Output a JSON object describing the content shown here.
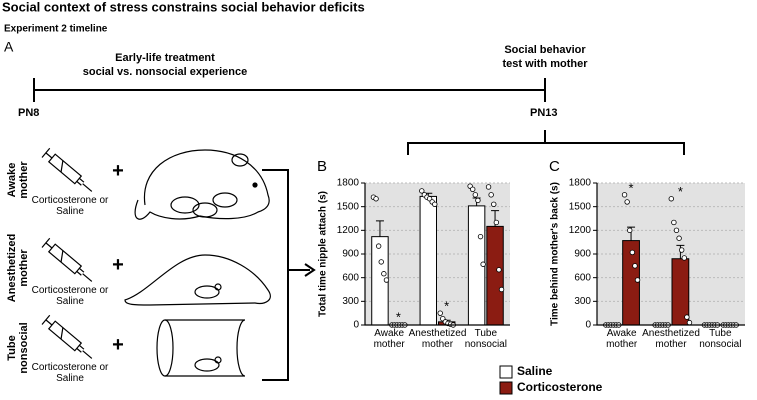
{
  "title": "Social context of stress constrains social behavior deficits",
  "subtitle": "Experiment 2 timeline",
  "panel_a": "A",
  "timeline": {
    "treatment": [
      "Early-life treatment",
      "social vs. nonsocial experience"
    ],
    "test": [
      "Social behavior",
      "test with mother"
    ],
    "start": "PN8",
    "end": "PN13"
  },
  "conditions": [
    {
      "label": "Awake mother",
      "drug": "Corticosterone or Saline",
      "plus": "+"
    },
    {
      "label": "Anesthetized mother",
      "drug": "Corticosterone or Saline",
      "plus": "+"
    },
    {
      "label": "Tube nonsocial",
      "drug": "Corticosterone or Saline",
      "plus": "+"
    }
  ],
  "chart_data": [
    {
      "type": "bar",
      "panel": "B",
      "y_label": "Total time nipple attach (s)",
      "categories": [
        "Awake mother",
        "Anesthetized mother",
        "Tube nonsocial"
      ],
      "ylim": [
        0,
        1800
      ],
      "yticks": [
        0,
        300,
        600,
        900,
        1200,
        1500,
        1800
      ],
      "grid": true,
      "series": [
        {
          "name": "Saline",
          "color": "#ffffff",
          "values": [
            1120,
            1630,
            1510
          ],
          "errors": [
            200,
            40,
            100
          ],
          "points": [
            [
              1620,
              1600,
              1000,
              800,
              650,
              570
            ],
            [
              1700,
              1650,
              1620,
              1600,
              1560,
              1530
            ],
            [
              1760,
              1720,
              1650,
              1580,
              1120,
              770
            ]
          ]
        },
        {
          "name": "Corticosterone",
          "color": "#8b1c12",
          "values": [
            10,
            40,
            1250
          ],
          "errors": [
            5,
            20,
            200
          ],
          "significance": [
            "*",
            "*",
            null
          ],
          "points": [
            [
              0,
              0,
              0,
              0,
              0,
              0
            ],
            [
              150,
              80,
              40,
              20,
              10,
              0
            ],
            [
              1750,
              1650,
              1530,
              1300,
              700,
              450
            ]
          ]
        }
      ]
    },
    {
      "type": "bar",
      "panel": "C",
      "y_label": "Time behind mother's back (s)",
      "categories": [
        "Awake mother",
        "Anesthetized mother",
        "Tube nonsocial"
      ],
      "ylim": [
        0,
        1800
      ],
      "yticks": [
        0,
        300,
        600,
        900,
        1200,
        1500,
        1800
      ],
      "grid": true,
      "series": [
        {
          "color": "#ffffff",
          "values": [
            0,
            0,
            0
          ],
          "errors": [
            0,
            0,
            0
          ],
          "points": [
            [
              0,
              0,
              0,
              0,
              0,
              0
            ],
            [
              0,
              0,
              0,
              0,
              0,
              0
            ],
            [
              0,
              0,
              0,
              0,
              0,
              0
            ]
          ]
        },
        {
          "color": "#8b1c12",
          "values": [
            1070,
            840,
            0
          ],
          "errors": [
            170,
            170,
            0
          ],
          "significance": [
            "*",
            "*",
            null
          ],
          "points": [
            [
              1650,
              1560,
              1200,
              920,
              750,
              570
            ],
            [
              1600,
              1300,
              1200,
              1100,
              950,
              850,
              100,
              30
            ],
            [
              0,
              0,
              0,
              0,
              0,
              0
            ]
          ]
        }
      ]
    }
  ]
}
